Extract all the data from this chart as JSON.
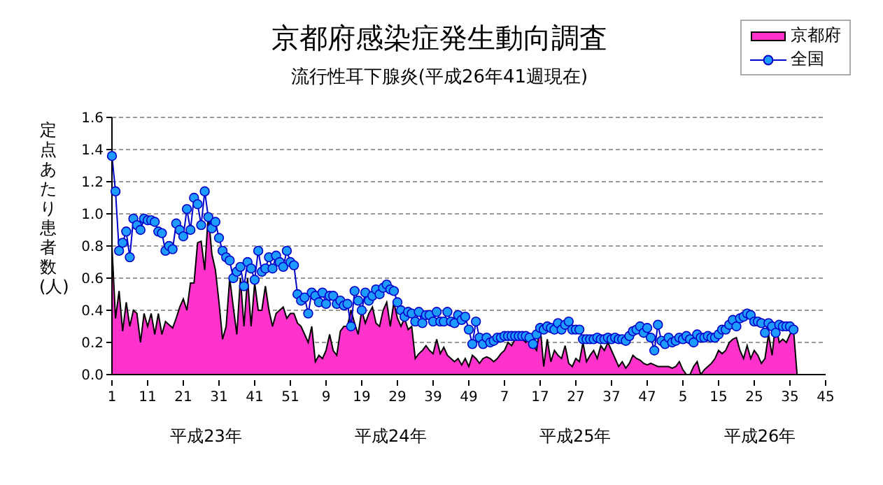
{
  "chart_data": {
    "type": "area",
    "title": "京都府感染症発生動向調査",
    "subtitle": "流行性耳下腺炎(平成26年41週現在)",
    "ylabel": "定点あたり患者数(人)",
    "annotations": [
      "平成23年",
      "平成24年",
      "平成25年",
      "平成26年"
    ],
    "categories": [
      "1",
      null,
      null,
      null,
      null,
      null,
      null,
      null,
      null,
      null,
      "11",
      null,
      null,
      null,
      null,
      null,
      null,
      null,
      null,
      null,
      "21",
      null,
      null,
      null,
      null,
      null,
      null,
      null,
      null,
      null,
      "31",
      null,
      null,
      null,
      null,
      null,
      null,
      null,
      null,
      null,
      "41",
      null,
      null,
      null,
      null,
      null,
      null,
      null,
      null,
      null,
      "51",
      null,
      null,
      null,
      null,
      null,
      null,
      null,
      null,
      null,
      "9",
      null,
      null,
      null,
      null,
      null,
      null,
      null,
      null,
      null,
      "19",
      null,
      null,
      null,
      null,
      null,
      null,
      null,
      null,
      null,
      "29",
      null,
      null,
      null,
      null,
      null,
      null,
      null,
      null,
      null,
      "39",
      null,
      null,
      null,
      null,
      null,
      null,
      null,
      null,
      null,
      "49",
      null,
      null,
      null,
      null,
      null,
      null,
      null,
      null,
      null,
      "7",
      null,
      null,
      null,
      null,
      null,
      null,
      null,
      null,
      null,
      "17",
      null,
      null,
      null,
      null,
      null,
      null,
      null,
      null,
      null,
      "27",
      null,
      null,
      null,
      null,
      null,
      null,
      null,
      null,
      null,
      "37",
      null,
      null,
      null,
      null,
      null,
      null,
      null,
      null,
      null,
      "47",
      null,
      null,
      null,
      null,
      null,
      null,
      null,
      null,
      null,
      "5",
      null,
      null,
      null,
      null,
      null,
      null,
      null,
      null,
      null,
      "15",
      null,
      null,
      null,
      null,
      null,
      null,
      null,
      null,
      null,
      "25",
      null,
      null,
      null,
      null,
      null,
      null,
      null,
      null,
      null,
      "35",
      null,
      null,
      null,
      null,
      null,
      null,
      null,
      null,
      null,
      "45"
    ],
    "ylim": [
      0,
      1.6
    ],
    "yticks": [
      {
        "value": 0,
        "label": "0.0"
      },
      {
        "value": 0.2,
        "label": "0.2"
      },
      {
        "value": 0.4,
        "label": "0.4"
      },
      {
        "value": 0.6,
        "label": "0.6"
      },
      {
        "value": 0.8,
        "label": "0.8"
      },
      {
        "value": 1,
        "label": "1.0"
      },
      {
        "value": 1.2,
        "label": "1.2"
      },
      {
        "value": 1.4,
        "label": "1.4"
      },
      {
        "value": 1.6,
        "label": "1.6"
      }
    ],
    "grid": "y",
    "legend": "top right",
    "series": [
      {
        "name": "京都府",
        "color": "#ff33cc",
        "values": [
          0.8,
          0.35,
          0.52,
          0.27,
          0.45,
          0.3,
          0.4,
          0.38,
          0.2,
          0.38,
          0.3,
          0.38,
          0.25,
          0.38,
          0.25,
          0.33,
          0.31,
          0.29,
          0.35,
          0.42,
          0.47,
          0.4,
          0.57,
          0.57,
          0.82,
          0.83,
          0.65,
          1.0,
          0.75,
          0.65,
          0.45,
          0.22,
          0.3,
          0.6,
          0.42,
          0.25,
          0.6,
          0.3,
          0.6,
          0.3,
          0.57,
          0.4,
          0.4,
          0.55,
          0.4,
          0.3,
          0.38,
          0.4,
          0.42,
          0.35,
          0.38,
          0.38,
          0.32,
          0.3,
          0.25,
          0.2,
          0.3,
          0.08,
          0.12,
          0.1,
          0.15,
          0.25,
          0.15,
          0.12,
          0.27,
          0.3,
          0.3,
          0.4,
          0.32,
          0.25,
          0.4,
          0.32,
          0.38,
          0.42,
          0.32,
          0.3,
          0.4,
          0.45,
          0.3,
          0.45,
          0.35,
          0.3,
          0.35,
          0.28,
          0.3,
          0.1,
          0.13,
          0.15,
          0.18,
          0.15,
          0.13,
          0.22,
          0.13,
          0.17,
          0.12,
          0.1,
          0.08,
          0.1,
          0.06,
          0.1,
          0.05,
          0.12,
          0.1,
          0.07,
          0.1,
          0.11,
          0.1,
          0.08,
          0.1,
          0.13,
          0.15,
          0.2,
          0.18,
          0.22,
          0.25,
          0.22,
          0.2,
          0.25,
          0.18,
          0.15,
          0.3,
          0.05,
          0.22,
          0.08,
          0.15,
          0.12,
          0.1,
          0.18,
          0.07,
          0.05,
          0.1,
          0.08,
          0.2,
          0.08,
          0.12,
          0.15,
          0.1,
          0.18,
          0.15,
          0.2,
          0.15,
          0.1,
          0.05,
          0.08,
          0.04,
          0.07,
          0.12,
          0.1,
          0.09,
          0.07,
          0.06,
          0.07,
          0.06,
          0.05,
          0.05,
          0.05,
          0.05,
          0.04,
          0.05,
          0.08,
          0.03,
          0,
          0,
          0.05,
          0.08,
          0,
          0.03,
          0.05,
          0.07,
          0.1,
          0.15,
          0.13,
          0.15,
          0.2,
          0.22,
          0.23,
          0.15,
          0.1,
          0.18,
          0.1,
          0.15,
          0.12,
          0.07,
          0.1,
          0.25,
          0.12,
          0.32,
          0.2,
          0.22,
          0.2,
          0.25,
          0.28,
          0,
          null,
          null,
          null,
          null,
          null,
          null,
          null,
          null
        ]
      },
      {
        "name": "全国",
        "type": "line",
        "color": "#1e9bff",
        "marker": "circle",
        "values": [
          1.36,
          1.14,
          0.77,
          0.82,
          0.89,
          0.73,
          0.97,
          0.93,
          0.9,
          0.97,
          0.96,
          0.96,
          0.95,
          0.89,
          0.88,
          0.77,
          0.8,
          0.78,
          0.94,
          0.9,
          0.86,
          1.03,
          0.9,
          1.1,
          1.06,
          0.93,
          1.14,
          0.98,
          0.91,
          0.95,
          0.85,
          0.77,
          0.73,
          0.71,
          0.6,
          0.64,
          0.67,
          0.55,
          0.7,
          0.66,
          0.59,
          0.77,
          0.64,
          0.66,
          0.73,
          0.66,
          0.74,
          0.7,
          0.67,
          0.77,
          0.7,
          0.68,
          0.5,
          0.46,
          0.48,
          0.38,
          0.51,
          0.49,
          0.45,
          0.51,
          0.44,
          0.49,
          0.49,
          0.44,
          0.46,
          0.43,
          0.44,
          0.3,
          0.52,
          0.46,
          0.4,
          0.51,
          0.46,
          0.49,
          0.53,
          0.5,
          0.54,
          0.56,
          0.53,
          0.52,
          0.45,
          0.4,
          0.36,
          0.39,
          0.38,
          0.33,
          0.39,
          0.32,
          0.37,
          0.37,
          0.33,
          0.39,
          0.33,
          0.33,
          0.39,
          0.33,
          0.32,
          0.37,
          0.34,
          0.36,
          0.28,
          0.19,
          0.33,
          0.23,
          0.19,
          0.23,
          0.2,
          0.21,
          0.23,
          0.23,
          0.24,
          0.24,
          0.24,
          0.24,
          0.24,
          0.24,
          0.24,
          0.23,
          0.19,
          0.25,
          0.29,
          0.28,
          0.3,
          0.29,
          0.28,
          0.32,
          0.28,
          0.31,
          0.33,
          0.28,
          0.28,
          0.28,
          0.22,
          0.22,
          0.22,
          0.22,
          0.23,
          0.22,
          0.22,
          0.23,
          0.22,
          0.23,
          0.22,
          0.22,
          0.21,
          0.24,
          0.27,
          0.28,
          0.3,
          0.26,
          0.29,
          0.23,
          0.15,
          0.31,
          0.21,
          0.19,
          0.23,
          0.2,
          0.21,
          0.23,
          0.22,
          0.24,
          0.22,
          0.2,
          0.25,
          0.23,
          0.23,
          0.24,
          0.23,
          0.23,
          0.25,
          0.28,
          0.28,
          0.31,
          0.34,
          0.3,
          0.35,
          0.36,
          0.38,
          0.37,
          0.33,
          0.33,
          0.32,
          0.26,
          0.32,
          0.3,
          0.26,
          0.31,
          0.3,
          0.3,
          0.3,
          0.28,
          null,
          null,
          null,
          null,
          null,
          null,
          null,
          null,
          null
        ]
      }
    ]
  }
}
